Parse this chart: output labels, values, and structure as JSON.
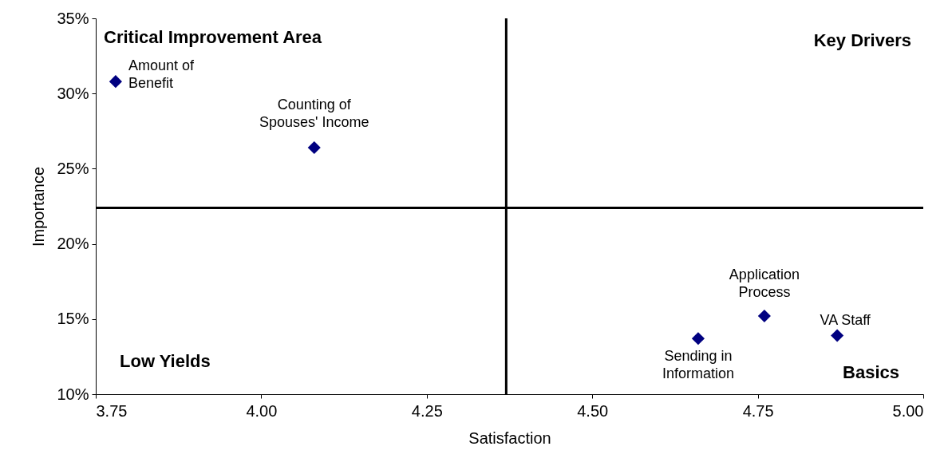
{
  "chart_data": {
    "type": "scatter",
    "xlabel": "Satisfaction",
    "ylabel": "Importance",
    "x": [
      3.78,
      4.08,
      4.66,
      4.76,
      4.87
    ],
    "series": [
      {
        "color": "#000080",
        "values": [
          30.8,
          26.4,
          13.7,
          15.2,
          13.9
        ]
      }
    ],
    "marker": "diamond",
    "xlim": [
      3.75,
      5.0
    ],
    "xticks": [
      {
        "value": 3.75,
        "label": "3.75"
      },
      {
        "value": 4.0,
        "label": "4.00"
      },
      {
        "value": 4.25,
        "label": "4.25"
      },
      {
        "value": 4.5,
        "label": "4.50"
      },
      {
        "value": 4.75,
        "label": "4.75"
      },
      {
        "value": 5.0,
        "label": "5.00"
      }
    ],
    "ylim": [
      10,
      35
    ],
    "yticks": [
      {
        "value": 10,
        "label": "10%"
      },
      {
        "value": 15,
        "label": "15%"
      },
      {
        "value": 20,
        "label": "20%"
      },
      {
        "value": 25,
        "label": "25%"
      },
      {
        "value": 30,
        "label": "30%"
      },
      {
        "value": 35,
        "label": "35%"
      }
    ],
    "ref_lines": [
      {
        "axis": "x",
        "value": 4.37,
        "color": "#000000"
      },
      {
        "axis": "y",
        "value": 22.4,
        "color": "#000000"
      }
    ],
    "annotations": [
      "Critical Improvement Area",
      "Key Drivers",
      "Low Yields",
      "Basics",
      {
        "text": "Amount of\nBenefit",
        "x": 3.78,
        "y": 30.8
      },
      {
        "text": "Counting of\nSpouses' Income",
        "x": 4.08,
        "y": 26.4
      },
      {
        "text": "Sending in\nInformation",
        "x": 4.66,
        "y": 13.7
      },
      {
        "text": "Application\nProcess",
        "x": 4.76,
        "y": 15.2
      },
      {
        "text": "VA Staff",
        "x": 4.87,
        "y": 13.9
      }
    ],
    "grid": false
  }
}
